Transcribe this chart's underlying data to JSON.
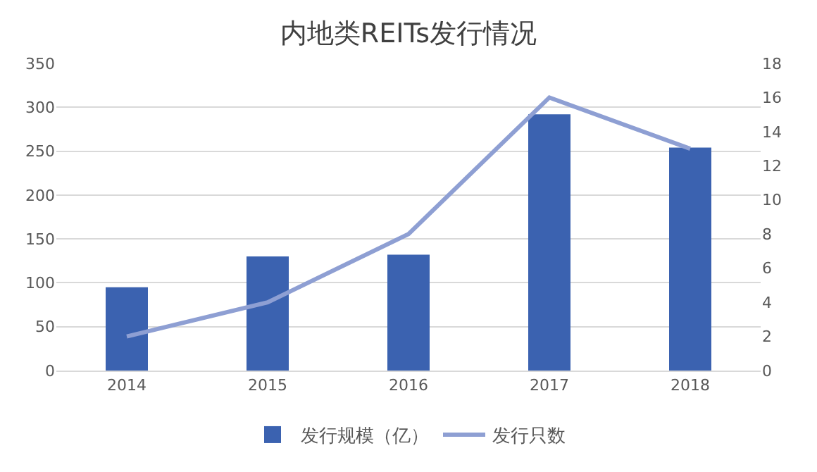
{
  "chart_data": {
    "type": "bar",
    "title": "内地类REITs发行情况",
    "categories": [
      "2014",
      "2015",
      "2016",
      "2017",
      "2018"
    ],
    "series": [
      {
        "name": "发行规模（亿）",
        "color": "#3b62b0",
        "values": [
          95,
          130,
          132,
          292,
          254
        ]
      },
      {
        "name": "发行只数",
        "type": "line",
        "axis": "y2",
        "color": "#8e9fd3",
        "values": [
          2,
          4,
          8,
          16,
          13
        ]
      }
    ],
    "ylim": [
      0,
      350
    ],
    "yticks": [
      0,
      50,
      100,
      150,
      200,
      250,
      300,
      350
    ],
    "y2lim": [
      0,
      18
    ],
    "y2ticks": [
      0,
      2,
      4,
      6,
      8,
      10,
      12,
      14,
      16,
      18
    ],
    "grid": "y",
    "legend": "bottom",
    "marker": "none",
    "line_style": "solid"
  }
}
